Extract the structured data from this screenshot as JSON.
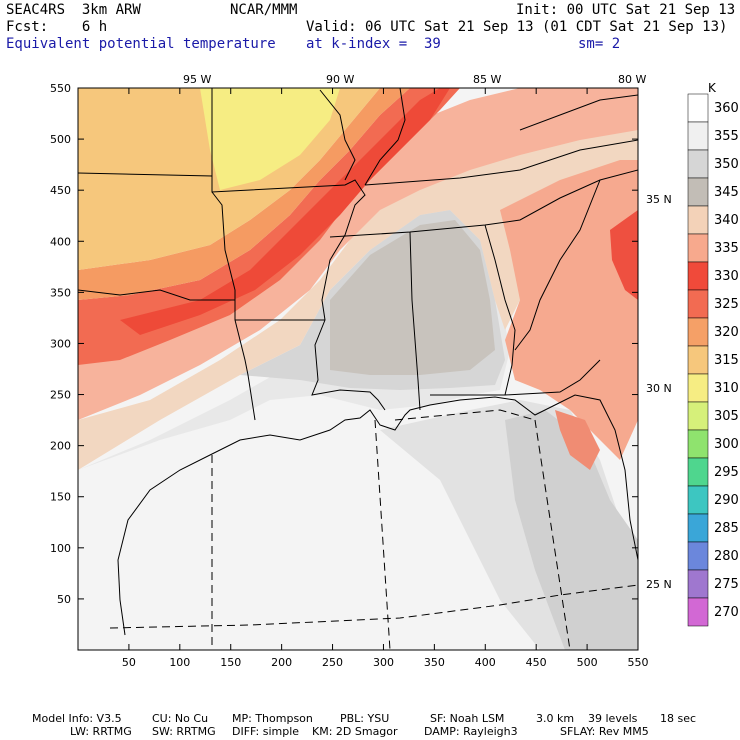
{
  "header": {
    "model": "SEAC4RS  3km ARW",
    "org": "NCAR/MMM",
    "init": "Init: 00 UTC Sat 21 Sep 13",
    "fcst": "Fcst:    6 h",
    "valid": "Valid: 06 UTC Sat 21 Sep 13 (01 CDT Sat 21 Sep 13)",
    "field": "Equivalent potential temperature",
    "level": "at k-index =  39",
    "smooth": "sm= 2"
  },
  "longitudes": [
    "95 W",
    "90 W",
    "85 W",
    "80 W"
  ],
  "latitudes": [
    "35 N",
    "30 N",
    "25 N"
  ],
  "y_ticks": [
    "550",
    "500",
    "450",
    "400",
    "350",
    "300",
    "250",
    "200",
    "150",
    "100",
    "50"
  ],
  "x_ticks": [
    "50",
    "100",
    "150",
    "200",
    "250",
    "300",
    "350",
    "400",
    "450",
    "500",
    "550"
  ],
  "colorbar": {
    "unit": "K",
    "levels": [
      "360",
      "355",
      "350",
      "345",
      "340",
      "335",
      "330",
      "325",
      "320",
      "315",
      "310",
      "305",
      "300",
      "295",
      "290",
      "285",
      "280",
      "275",
      "270"
    ],
    "colors": [
      "#ffffff",
      "#f0f0f0",
      "#d6d6d6",
      "#c2bdb6",
      "#f3d2b8",
      "#f7a98d",
      "#f04a3a",
      "#f26b52",
      "#f5a067",
      "#f6c77c",
      "#f6ed83",
      "#d6f07a",
      "#8fe36e",
      "#4fd68e",
      "#3dc6c1",
      "#3aa6d8",
      "#6b87dc",
      "#9f77cf",
      "#d268d4"
    ]
  },
  "footer": {
    "line1": [
      {
        "k": "Model Info: V3.5"
      },
      {
        "k": "CU: No Cu"
      },
      {
        "k": "MP: Thompson"
      },
      {
        "k": "PBL: YSU"
      },
      {
        "k": "SF: Noah LSM"
      },
      {
        "k": "3.0 km"
      },
      {
        "k": "39 levels"
      },
      {
        "k": "18 sec"
      }
    ],
    "line2": [
      {
        "k": "LW: RRTMG"
      },
      {
        "k": "SW: RRTMG"
      },
      {
        "k": "DIFF: simple"
      },
      {
        "k": "KM: 2D Smagor"
      },
      {
        "k": "DAMP: Rayleigh3"
      },
      {
        "k": "SFLAY: Rev MM5"
      }
    ]
  }
}
